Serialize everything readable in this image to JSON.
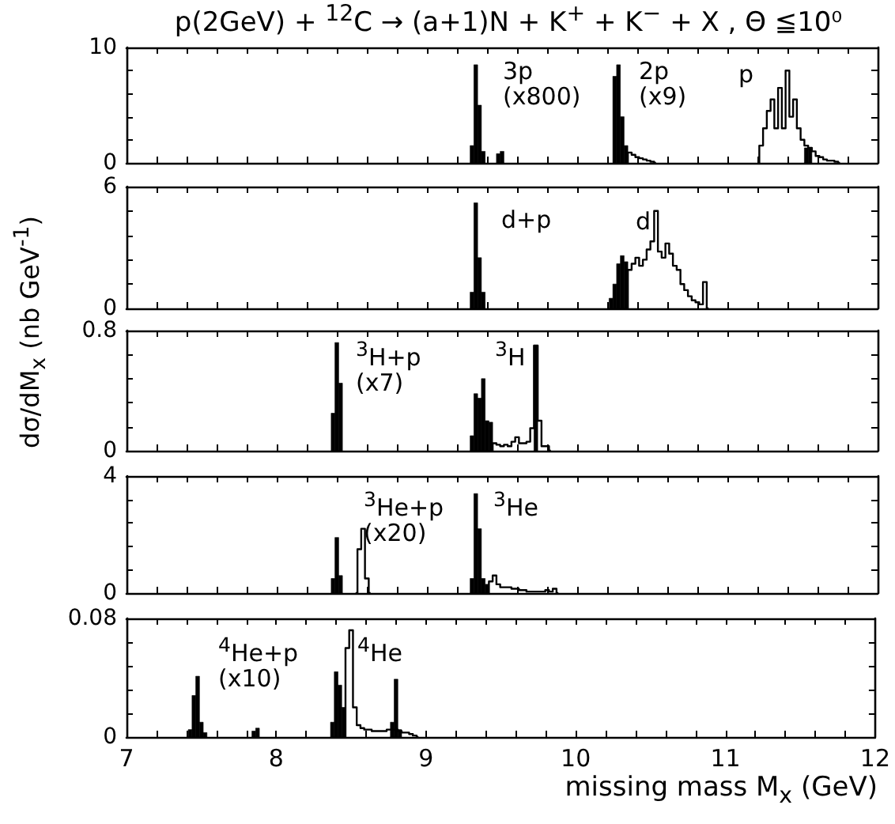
{
  "chart_data": [
    {
      "type": "bar",
      "title": "p(2GeV) + $^{12}$C → (a+1)N + K$^{+}$ + K$^{−}$ + X , Θ ≦10⁰",
      "xlim": [
        7,
        12
      ],
      "ylim": [
        0,
        10
      ],
      "tick_labels": "y",
      "xticks": [
        7,
        {
          "value": 7.2,
          "label": null
        },
        {
          "value": 7.4,
          "label": null
        },
        {
          "value": 7.6,
          "label": null
        },
        {
          "value": 7.8,
          "label": null
        },
        8,
        {
          "value": 8.2,
          "label": null
        },
        {
          "value": 8.4,
          "label": null
        },
        {
          "value": 8.6,
          "label": null
        },
        {
          "value": 8.8,
          "label": null
        },
        9,
        {
          "value": 9.2,
          "label": null
        },
        {
          "value": 9.4,
          "label": null
        },
        {
          "value": 9.6,
          "label": null
        },
        {
          "value": 9.8,
          "label": null
        },
        10,
        {
          "value": 10.2,
          "label": null
        },
        {
          "value": 10.4,
          "label": null
        },
        {
          "value": 10.6,
          "label": null
        },
        {
          "value": 10.8,
          "label": null
        },
        11,
        {
          "value": 11.2,
          "label": null
        },
        {
          "value": 11.4,
          "label": null
        },
        {
          "value": 11.6,
          "label": null
        },
        {
          "value": 11.8,
          "label": null
        },
        12
      ],
      "yticks": [
        0,
        {
          "value": 2,
          "label": null
        },
        {
          "value": 4,
          "label": null
        },
        {
          "value": 6,
          "label": null
        },
        {
          "value": 8,
          "label": null
        },
        10
      ],
      "annotations": [
        "3p\n(x800)",
        "2p\n(x9)",
        "p"
      ],
      "series": [
        {
          "color": "#000000",
          "x": [
            9.3,
            9.325,
            9.35,
            9.375
          ],
          "values": [
            1.5,
            8.5,
            5,
            1
          ]
        },
        {
          "color": "#000000",
          "x": [
            9.475,
            9.5
          ],
          "values": [
            0.8,
            1
          ]
        },
        {
          "color": "#000000",
          "x": [
            10.25,
            10.275,
            10.3,
            10.325
          ],
          "values": [
            7.5,
            8.5,
            4,
            1.5
          ]
        },
        {
          "type": "step",
          "color": "#000000",
          "x": [
            10.325,
            10.35,
            10.375,
            10.4,
            10.425,
            10.45,
            10.475,
            10.5,
            10.525
          ],
          "values": [
            0,
            0.9,
            0.7,
            0.5,
            0.4,
            0.3,
            0.2,
            0.1,
            0
          ]
        },
        {
          "color": "#000000",
          "x": [
            11.525,
            11.55
          ],
          "values": [
            1.3,
            1.3
          ]
        },
        {
          "type": "step",
          "color": "#000000",
          "x": [
            11.2,
            11.225,
            11.25,
            11.275,
            11.3,
            11.325,
            11.35,
            11.375,
            11.4,
            11.425,
            11.45,
            11.475,
            11.5,
            11.525,
            11.55,
            11.575,
            11.6,
            11.625,
            11.65,
            11.675,
            11.7,
            11.725,
            11.75
          ],
          "values": [
            0,
            1.5,
            3,
            4.5,
            5.5,
            3,
            6.5,
            3,
            8,
            4,
            5.5,
            3,
            2,
            1.5,
            1.3,
            1,
            0.6,
            0.5,
            0.3,
            0.2,
            0.2,
            0.1,
            0
          ]
        }
      ]
    },
    {
      "type": "bar",
      "xlim": [
        7,
        12
      ],
      "ylim": [
        0,
        6
      ],
      "tick_labels": "y",
      "xticks": [
        7,
        {
          "value": 7.2,
          "label": null
        },
        {
          "value": 7.4,
          "label": null
        },
        {
          "value": 7.6,
          "label": null
        },
        {
          "value": 7.8,
          "label": null
        },
        8,
        {
          "value": 8.2,
          "label": null
        },
        {
          "value": 8.4,
          "label": null
        },
        {
          "value": 8.6,
          "label": null
        },
        {
          "value": 8.8,
          "label": null
        },
        9,
        {
          "value": 9.2,
          "label": null
        },
        {
          "value": 9.4,
          "label": null
        },
        {
          "value": 9.6,
          "label": null
        },
        {
          "value": 9.8,
          "label": null
        },
        10,
        {
          "value": 10.2,
          "label": null
        },
        {
          "value": 10.4,
          "label": null
        },
        {
          "value": 10.6,
          "label": null
        },
        {
          "value": 10.8,
          "label": null
        },
        11,
        {
          "value": 11.2,
          "label": null
        },
        {
          "value": 11.4,
          "label": null
        },
        {
          "value": 11.6,
          "label": null
        },
        {
          "value": 11.8,
          "label": null
        },
        12
      ],
      "yticks": [
        0,
        {
          "value": 1.2,
          "label": null
        },
        {
          "value": 2.4,
          "label": null
        },
        {
          "value": 3.6,
          "label": null
        },
        {
          "value": 4.8,
          "label": null
        },
        6
      ],
      "annotations": [
        "d+p",
        "d"
      ],
      "series": [
        {
          "color": "#000000",
          "x": [
            9.3,
            9.325,
            9.35,
            9.375
          ],
          "values": [
            0.8,
            5.2,
            2.5,
            0.8
          ]
        },
        {
          "color": "#000000",
          "x": [
            10.225,
            10.25,
            10.275,
            10.3,
            10.325
          ],
          "values": [
            0.5,
            1.2,
            2.2,
            2.6,
            2.3
          ]
        },
        {
          "type": "step",
          "color": "#000000",
          "x": [
            10.325,
            10.35,
            10.375,
            10.4,
            10.425,
            10.45,
            10.475,
            10.5,
            10.525,
            10.55,
            10.575,
            10.6,
            10.625,
            10.65,
            10.675,
            10.7,
            10.725,
            10.75,
            10.775,
            10.8,
            10.825,
            10.85,
            10.875
          ],
          "values": [
            0,
            1.9,
            2.2,
            2.5,
            2.1,
            2.4,
            2.9,
            3.3,
            4.8,
            2.8,
            2.5,
            3.2,
            2.7,
            2.1,
            1.9,
            1.2,
            0.9,
            0.6,
            0.4,
            0.3,
            0.2,
            1.3,
            0
          ]
        }
      ]
    },
    {
      "type": "bar",
      "ylabel": "dσ/dM$_{x}$ (nb GeV$^{-1}$)",
      "xlim": [
        7,
        12
      ],
      "ylim": [
        0,
        0.8
      ],
      "tick_labels": "y",
      "xticks": [
        7,
        {
          "value": 7.2,
          "label": null
        },
        {
          "value": 7.4,
          "label": null
        },
        {
          "value": 7.6,
          "label": null
        },
        {
          "value": 7.8,
          "label": null
        },
        8,
        {
          "value": 8.2,
          "label": null
        },
        {
          "value": 8.4,
          "label": null
        },
        {
          "value": 8.6,
          "label": null
        },
        {
          "value": 8.8,
          "label": null
        },
        9,
        {
          "value": 9.2,
          "label": null
        },
        {
          "value": 9.4,
          "label": null
        },
        {
          "value": 9.6,
          "label": null
        },
        {
          "value": 9.8,
          "label": null
        },
        10,
        {
          "value": 10.2,
          "label": null
        },
        {
          "value": 10.4,
          "label": null
        },
        {
          "value": 10.6,
          "label": null
        },
        {
          "value": 10.8,
          "label": null
        },
        11,
        {
          "value": 11.2,
          "label": null
        },
        {
          "value": 11.4,
          "label": null
        },
        {
          "value": 11.6,
          "label": null
        },
        {
          "value": 11.8,
          "label": null
        },
        12
      ],
      "yticks": [
        0,
        {
          "value": 0.16,
          "label": null
        },
        {
          "value": 0.32,
          "label": null
        },
        {
          "value": 0.48,
          "label": null
        },
        {
          "value": 0.64,
          "label": null
        },
        0.8
      ],
      "annotations": [
        "$^{3}$H+p\n(x7)",
        "$^{3}$H"
      ],
      "series": [
        {
          "color": "#000000",
          "x": [
            8.375,
            8.4,
            8.425
          ],
          "values": [
            0.25,
            0.72,
            0.45
          ]
        },
        {
          "color": "#000000",
          "x": [
            9.3,
            9.325,
            9.35,
            9.375,
            9.4,
            9.425
          ],
          "values": [
            0.1,
            0.38,
            0.35,
            0.48,
            0.2,
            0.19
          ]
        },
        {
          "type": "step",
          "color": "#000000",
          "x": [
            9.425,
            9.45,
            9.475,
            9.5,
            9.525,
            9.55,
            9.575,
            9.6,
            9.625,
            9.65,
            9.675,
            9.7,
            9.725,
            9.75,
            9.775,
            9.8,
            9.825
          ],
          "values": [
            0,
            0.05,
            0.04,
            0.03,
            0.04,
            0.03,
            0.06,
            0.09,
            0.05,
            0.05,
            0.06,
            0.15,
            0.7,
            0.2,
            0.03,
            0.03,
            0
          ]
        },
        {
          "color": "#000000",
          "x": [
            9.725
          ],
          "values": [
            0.7
          ]
        }
      ]
    },
    {
      "type": "bar",
      "xlim": [
        7,
        12
      ],
      "ylim": [
        0,
        4
      ],
      "tick_labels": "y",
      "xticks": [
        7,
        {
          "value": 7.2,
          "label": null
        },
        {
          "value": 7.4,
          "label": null
        },
        {
          "value": 7.6,
          "label": null
        },
        {
          "value": 7.8,
          "label": null
        },
        8,
        {
          "value": 8.2,
          "label": null
        },
        {
          "value": 8.4,
          "label": null
        },
        {
          "value": 8.6,
          "label": null
        },
        {
          "value": 8.8,
          "label": null
        },
        9,
        {
          "value": 9.2,
          "label": null
        },
        {
          "value": 9.4,
          "label": null
        },
        {
          "value": 9.6,
          "label": null
        },
        {
          "value": 9.8,
          "label": null
        },
        10,
        {
          "value": 10.2,
          "label": null
        },
        {
          "value": 10.4,
          "label": null
        },
        {
          "value": 10.6,
          "label": null
        },
        {
          "value": 10.8,
          "label": null
        },
        11,
        {
          "value": 11.2,
          "label": null
        },
        {
          "value": 11.4,
          "label": null
        },
        {
          "value": 11.6,
          "label": null
        },
        {
          "value": 11.8,
          "label": null
        },
        12
      ],
      "yticks": [
        0,
        {
          "value": 0.8,
          "label": null
        },
        {
          "value": 1.6,
          "label": null
        },
        {
          "value": 2.4,
          "label": null
        },
        {
          "value": 3.2,
          "label": null
        },
        4
      ],
      "annotations": [
        "$^{3}$He+p\n(x20)",
        "$^{3}$He"
      ],
      "series": [
        {
          "color": "#000000",
          "x": [
            8.375,
            8.4,
            8.425
          ],
          "values": [
            0.5,
            1.9,
            0.6
          ]
        },
        {
          "type": "step",
          "color": "#000000",
          "x": [
            8.525,
            8.55,
            8.575,
            8.6,
            8.625
          ],
          "values": [
            0,
            1.5,
            2.2,
            0.5,
            0
          ]
        },
        {
          "color": "#000000",
          "x": [
            9.3,
            9.325,
            9.35,
            9.375,
            9.4
          ],
          "values": [
            0.5,
            3.4,
            2.2,
            0.5,
            0.3
          ]
        },
        {
          "type": "step",
          "color": "#000000",
          "x": [
            9.4,
            9.425,
            9.45,
            9.475,
            9.5,
            9.525,
            9.55,
            9.575,
            9.6,
            9.625,
            9.65,
            9.675,
            9.7,
            9.725,
            9.75,
            9.775,
            9.8,
            9.825,
            9.85,
            9.875
          ],
          "values": [
            0,
            0.4,
            0.6,
            0.3,
            0.2,
            0.2,
            0.2,
            0.15,
            0.15,
            0.1,
            0.1,
            0.05,
            0.05,
            0.05,
            0.05,
            0.05,
            0.1,
            0.05,
            0.15,
            0
          ]
        }
      ]
    },
    {
      "type": "bar",
      "xlabel": "missing mass M$_{x}$ (GeV)",
      "xlim": [
        7,
        12
      ],
      "ylim": [
        0,
        0.08
      ],
      "xticks": [
        7,
        {
          "value": 7.2,
          "label": null
        },
        {
          "value": 7.4,
          "label": null
        },
        {
          "value": 7.6,
          "label": null
        },
        {
          "value": 7.8,
          "label": null
        },
        8,
        {
          "value": 8.2,
          "label": null
        },
        {
          "value": 8.4,
          "label": null
        },
        {
          "value": 8.6,
          "label": null
        },
        {
          "value": 8.8,
          "label": null
        },
        9,
        {
          "value": 9.2,
          "label": null
        },
        {
          "value": 9.4,
          "label": null
        },
        {
          "value": 9.6,
          "label": null
        },
        {
          "value": 9.8,
          "label": null
        },
        10,
        {
          "value": 10.2,
          "label": null
        },
        {
          "value": 10.4,
          "label": null
        },
        {
          "value": 10.6,
          "label": null
        },
        {
          "value": 10.8,
          "label": null
        },
        11,
        {
          "value": 11.2,
          "label": null
        },
        {
          "value": 11.4,
          "label": null
        },
        {
          "value": 11.6,
          "label": null
        },
        {
          "value": 11.8,
          "label": null
        },
        12
      ],
      "yticks": [
        0,
        {
          "value": 0.016,
          "label": null
        },
        {
          "value": 0.032,
          "label": null
        },
        {
          "value": 0.048,
          "label": null
        },
        {
          "value": 0.064,
          "label": null
        },
        0.08
      ],
      "annotations": [
        "$^{4}$He+p\n(x10)",
        "$^{4}$He"
      ],
      "series": [
        {
          "color": "#000000",
          "x": [
            7.425,
            7.45,
            7.475,
            7.5,
            7.525
          ],
          "values": [
            0.005,
            0.028,
            0.041,
            0.01,
            0.003
          ]
        },
        {
          "color": "#000000",
          "x": [
            7.85,
            7.875
          ],
          "values": [
            0.004,
            0.006
          ]
        },
        {
          "color": "#000000",
          "x": [
            8.375,
            8.4,
            8.425,
            8.45
          ],
          "values": [
            0.01,
            0.044,
            0.035,
            0.02
          ]
        },
        {
          "type": "step",
          "color": "#000000",
          "x": [
            8.45,
            8.475,
            8.5,
            8.525,
            8.55,
            8.575,
            8.6,
            8.625,
            8.65,
            8.675,
            8.7,
            8.725,
            8.75,
            8.775,
            8.8,
            8.825,
            8.85,
            8.875,
            8.9,
            8.925,
            8.95
          ],
          "values": [
            0,
            0.06,
            0.072,
            0.02,
            0.008,
            0.006,
            0.005,
            0.005,
            0.004,
            0.004,
            0.004,
            0.004,
            0.005,
            0.005,
            0.005,
            0.004,
            0.003,
            0.003,
            0.002,
            0.001,
            0
          ]
        },
        {
          "color": "#000000",
          "x": [
            8.775,
            8.8,
            8.825
          ],
          "values": [
            0.01,
            0.039,
            0.005
          ]
        }
      ]
    }
  ]
}
